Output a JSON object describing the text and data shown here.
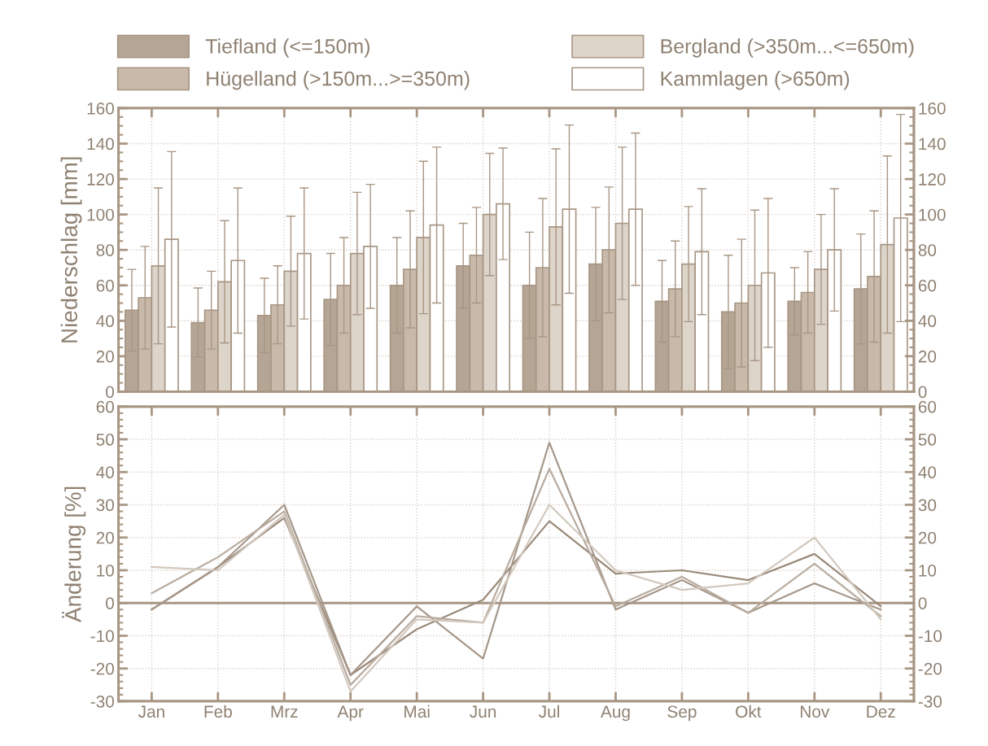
{
  "chart_data": [
    {
      "type": "bar",
      "ylabel": "Niederschlag [mm]",
      "categories": [
        null,
        null,
        null,
        null,
        null,
        null,
        null,
        null,
        null,
        null,
        null,
        null
      ],
      "series": [
        {
          "name": "Tiefland (<=150m)",
          "color": "#b5a595",
          "values": [
            46,
            39,
            43,
            52,
            60,
            71,
            60,
            72,
            51,
            45,
            51,
            58
          ],
          "errors": [
            23,
            19.5,
            21,
            26,
            27,
            24,
            30,
            32,
            23,
            32,
            19,
            31
          ]
        },
        {
          "name": "Hügelland (>150m...>=350m)",
          "color": "#c8b9aa",
          "values": [
            53,
            46,
            49,
            60,
            69,
            77,
            70,
            80,
            58,
            50,
            56,
            65
          ],
          "errors": [
            29,
            22,
            22,
            27,
            33,
            27,
            39,
            35.5,
            27,
            36,
            23,
            37
          ]
        },
        {
          "name": "Bergland (>350m...<=650m)",
          "color": "#ddd4ca",
          "values": [
            71,
            62,
            68,
            78,
            87,
            100,
            93,
            95,
            72,
            60,
            69,
            83
          ],
          "errors": [
            44,
            34.5,
            31,
            34.5,
            43,
            34.5,
            44,
            43,
            32.5,
            42.5,
            31,
            50
          ]
        },
        {
          "name": "Kammlagen (>650m)",
          "color": "#ffffff",
          "values": [
            86,
            74,
            78,
            82,
            94,
            106,
            103,
            103,
            79,
            67,
            80,
            98
          ],
          "errors": [
            49.5,
            41,
            37,
            35,
            44,
            31.5,
            47.5,
            43,
            35.5,
            42,
            34.5,
            58.5
          ]
        }
      ],
      "ylim": [
        0,
        160
      ],
      "yticks": [
        0,
        20,
        40,
        60,
        80,
        100,
        120,
        140,
        160
      ],
      "y2lim": [
        0,
        160
      ],
      "y2ticks": [
        0,
        20,
        40,
        60,
        80,
        100,
        120,
        140,
        160
      ],
      "grid": true,
      "legend": "top"
    },
    {
      "type": "line",
      "ylabel": "Änderung [%]",
      "categories": [
        "Jan",
        "Feb",
        "Mrz",
        "Apr",
        "Mai",
        "Jun",
        "Jul",
        "Aug",
        "Sep",
        "Okt",
        "Nov",
        "Dez"
      ],
      "series": [
        {
          "color": "#9a8a7a",
          "values": [
            -2,
            11,
            26,
            -22,
            -8,
            1,
            25,
            9,
            10,
            7,
            15,
            -1
          ]
        },
        {
          "color": "#a6978a",
          "values": [
            -2,
            11,
            30,
            -22,
            -1,
            -17,
            49,
            -2,
            7,
            -3,
            6,
            -2
          ]
        },
        {
          "color": "#b9aca0",
          "values": [
            3,
            14,
            28,
            -25,
            -4,
            -6,
            41,
            -1,
            8,
            -3,
            12,
            -4
          ]
        },
        {
          "color": "#d2c8be",
          "values": [
            11,
            10,
            27,
            -27,
            -5,
            -6,
            30,
            10,
            4,
            6,
            20,
            -5
          ]
        }
      ],
      "ylim": [
        -30,
        60
      ],
      "yticks": [
        -30,
        -20,
        -10,
        0,
        10,
        20,
        30,
        40,
        50,
        60
      ],
      "y2lim": [
        -30,
        60
      ],
      "y2ticks": [
        -30,
        -20,
        -10,
        0,
        10,
        20,
        30,
        40,
        50,
        60
      ],
      "ref_lines": [
        {
          "axis": "y",
          "value": 0,
          "color": "#a89684"
        }
      ],
      "grid": true
    }
  ]
}
